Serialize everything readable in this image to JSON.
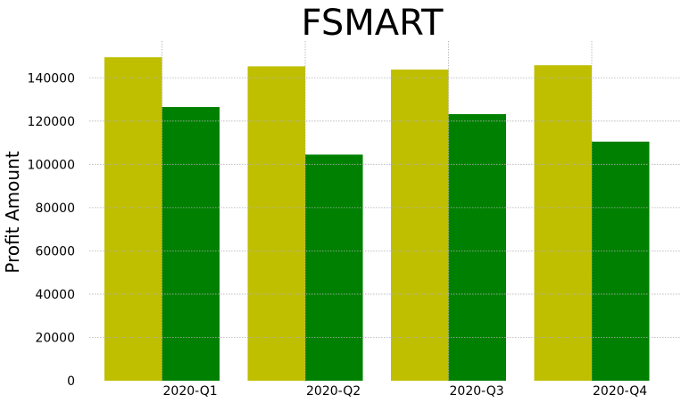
{
  "chart_data": {
    "type": "bar",
    "title": "FSMART",
    "xlabel": "",
    "ylabel": "Profit Amount",
    "categories": [
      "2020-Q1",
      "2020-Q2",
      "2020-Q3",
      "2020-Q4"
    ],
    "series": [
      {
        "color": "#bfbf00",
        "values": [
          149500,
          145300,
          143800,
          145800
        ]
      },
      {
        "color": "#008000",
        "values": [
          126500,
          104500,
          123200,
          110500
        ]
      }
    ],
    "ylim": [
      0,
      157000
    ],
    "yticks": [
      0,
      20000,
      40000,
      60000,
      80000,
      100000,
      120000,
      140000
    ],
    "ytick_labels": [
      "0",
      "20000",
      "40000",
      "60000",
      "80000",
      "100000",
      "120000",
      "140000"
    ],
    "grid": true,
    "legend": "none"
  }
}
